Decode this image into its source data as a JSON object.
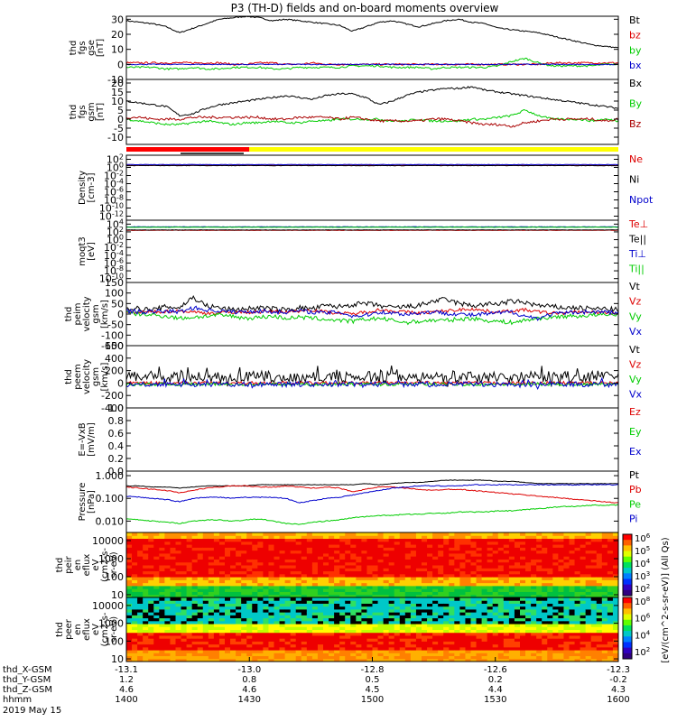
{
  "title": "P3 (TH-D) fields and on-board moments overview",
  "colors": {
    "black": "#000000",
    "red": "#dd0000",
    "green": "#00cc00",
    "blue": "#0000cc",
    "yellow": "#ffff00",
    "bar_red": "#ff0000"
  },
  "chart_data": [
    {
      "id": "fgs-gse",
      "type": "line",
      "ylabel": [
        "thd",
        "fgs",
        "gse",
        "[nT]"
      ],
      "ylim": [
        -10,
        32
      ],
      "yticks": [
        "30",
        "20",
        "10",
        "0",
        "-10"
      ],
      "ytick_values": [
        30,
        20,
        10,
        0,
        -10
      ],
      "series": [
        {
          "name": "Bt",
          "color": "#000000",
          "base": [
            29,
            28,
            27,
            25,
            21,
            24,
            27,
            30,
            31,
            32,
            31,
            29,
            30,
            29,
            28,
            27,
            26,
            22,
            25,
            28,
            29,
            27,
            25,
            27,
            29,
            30,
            28,
            27,
            24,
            23,
            22,
            21,
            19,
            17,
            15,
            13,
            12,
            11
          ],
          "noise": 0.4
        },
        {
          "name": "bz",
          "color": "#dd0000",
          "base": [
            1,
            1,
            1,
            1,
            1,
            1,
            1,
            1,
            0,
            0,
            1,
            1,
            0,
            0,
            1,
            0,
            0,
            0,
            0,
            0,
            0,
            0,
            0,
            0,
            0,
            0,
            0,
            0,
            0,
            0,
            0,
            0,
            1,
            1,
            1,
            1,
            1,
            1
          ],
          "noise": 0.6
        },
        {
          "name": "by",
          "color": "#00cc00",
          "base": [
            -2,
            -2,
            -2,
            -3,
            -3,
            -2,
            -3,
            -3,
            -2,
            -2,
            -2,
            -3,
            -3,
            -2,
            -2,
            -2,
            -2,
            -1,
            -1,
            -1,
            -2,
            -2,
            -2,
            -3,
            -2,
            -2,
            -2,
            -2,
            -1,
            2,
            4,
            1,
            -1,
            -1,
            -1,
            -1,
            0,
            0
          ],
          "noise": 0.6
        },
        {
          "name": "bx",
          "color": "#0000cc",
          "base": [
            0,
            0,
            0,
            0,
            0,
            0,
            0,
            0,
            0,
            0,
            0,
            0,
            0,
            0,
            0,
            0,
            0,
            0,
            0,
            0,
            0,
            0,
            0,
            0,
            0,
            0,
            0,
            0,
            0,
            0,
            0,
            0,
            0,
            0,
            0,
            0,
            0,
            0
          ],
          "noise": 0.3
        }
      ]
    },
    {
      "id": "fgs-gsm",
      "type": "line",
      "ylabel": [
        "thd",
        "fgs",
        "gsm",
        "[nT]"
      ],
      "ylim": [
        -14,
        22
      ],
      "yticks": [
        "20",
        "15",
        "10",
        "5",
        "0",
        "-5",
        "-10"
      ],
      "ytick_values": [
        20,
        15,
        10,
        5,
        0,
        -5,
        -10
      ],
      "series": [
        {
          "name": "Bx",
          "color": "#000000",
          "base": [
            10,
            9,
            8,
            7,
            2,
            3,
            6,
            8,
            9,
            10,
            11,
            12,
            13,
            12,
            11,
            13,
            14,
            14,
            12,
            8,
            10,
            13,
            15,
            16,
            17,
            17,
            18,
            16,
            15,
            14,
            13,
            12,
            11,
            10,
            9,
            8,
            7,
            6
          ],
          "noise": 0.5
        },
        {
          "name": "By",
          "color": "#00cc00",
          "base": [
            0,
            -1,
            -2,
            -3,
            -3,
            -2,
            -1,
            -2,
            -3,
            -2,
            -2,
            -1,
            -2,
            -2,
            -1,
            -1,
            0,
            0,
            0,
            0,
            -1,
            -1,
            0,
            -1,
            -1,
            -1,
            0,
            0,
            1,
            2,
            5,
            2,
            0,
            0,
            0,
            -1,
            0,
            -1
          ],
          "noise": 0.6
        },
        {
          "name": "Bz",
          "color": "#aa0000",
          "base": [
            1,
            1,
            0,
            0,
            0,
            1,
            1,
            1,
            1,
            1,
            1,
            0,
            0,
            1,
            1,
            1,
            0,
            1,
            0,
            -1,
            -1,
            -1,
            -1,
            0,
            0,
            -1,
            -2,
            -3,
            -3,
            -4,
            -2,
            -1,
            0,
            0,
            0,
            0,
            -1,
            0
          ],
          "noise": 0.7
        }
      ]
    },
    {
      "id": "density",
      "type": "line",
      "log": true,
      "ylabel": [
        "Density",
        "[cm-3]"
      ],
      "ylim": [
        -13,
        3
      ],
      "yticks": [
        "10^2",
        "10^0",
        "10^-2",
        "10^-4",
        "10^-6",
        "10^-8",
        "10^-10",
        "10^-12"
      ],
      "ytick_values": [
        2,
        0,
        -2,
        -4,
        -6,
        -8,
        -10,
        -12
      ],
      "series": [
        {
          "name": "Ne",
          "color": "#dd0000",
          "base": [
            0.5
          ],
          "noise": 0.05
        },
        {
          "name": "Ni",
          "color": "#000000",
          "base": [
            0.45
          ],
          "noise": 0.05
        },
        {
          "name": "Npot",
          "color": "#0000cc",
          "base": [
            0.7
          ],
          "noise": 0.05
        }
      ]
    },
    {
      "id": "temperature",
      "type": "line",
      "log": true,
      "ylabel": [
        "moqt3",
        "[eV]"
      ],
      "ylim": [
        -11,
        5
      ],
      "yticks": [
        "10^4",
        "10^2",
        "10^0",
        "10^-2",
        "10^-4",
        "10^-6",
        "10^-8",
        "10^-10"
      ],
      "ytick_values": [
        4,
        2,
        0,
        -2,
        -4,
        -6,
        -8,
        -10
      ],
      "series": [
        {
          "name": "Te⊥",
          "color": "#dd0000",
          "base": [
            2.4
          ],
          "noise": 0.05
        },
        {
          "name": "Te||",
          "color": "#000000",
          "base": [
            2.5
          ],
          "noise": 0.05
        },
        {
          "name": "Ti⊥",
          "color": "#0000cc",
          "base": [
            3.3
          ],
          "noise": 0.05
        },
        {
          "name": "Ti||",
          "color": "#00cc00",
          "base": [
            3.2
          ],
          "noise": 0.05
        }
      ]
    },
    {
      "id": "peim-velocity",
      "type": "line",
      "ylabel": [
        "thd",
        "peim",
        "velocity",
        "gsm",
        "[km/s]"
      ],
      "ylim": [
        -150,
        150
      ],
      "yticks": [
        "150",
        "100",
        "50",
        "0",
        "-50",
        "-100",
        "-150"
      ],
      "ytick_values": [
        150,
        100,
        50,
        0,
        -50,
        -100,
        -150
      ],
      "series": [
        {
          "name": "Vt",
          "color": "#000000",
          "base": [
            30,
            25,
            20,
            35,
            30,
            80,
            40,
            30,
            20,
            25,
            30,
            25,
            20,
            30,
            25,
            40,
            35,
            45,
            50,
            40,
            30,
            35,
            40,
            60,
            70,
            50,
            40,
            45,
            50,
            60,
            55,
            40,
            35,
            30,
            30,
            25,
            25,
            20
          ],
          "noise": 12
        },
        {
          "name": "Vz",
          "color": "#dd0000",
          "base": [
            5,
            8,
            10,
            12,
            15,
            10,
            5,
            5,
            10,
            8,
            10,
            12,
            10,
            15,
            20,
            10,
            5,
            0,
            10,
            20,
            15,
            10,
            5,
            10,
            15,
            20,
            25,
            15,
            10,
            15,
            20,
            10,
            5,
            5,
            10,
            10,
            5,
            5
          ],
          "noise": 8
        },
        {
          "name": "Vy",
          "color": "#00cc00",
          "base": [
            5,
            0,
            -5,
            -10,
            -20,
            -15,
            -10,
            -5,
            -10,
            -20,
            -15,
            -10,
            -20,
            -15,
            -20,
            -25,
            -30,
            -35,
            -25,
            -20,
            -30,
            -40,
            -35,
            -30,
            -30,
            -25,
            -20,
            -30,
            -35,
            -40,
            -30,
            -20,
            -15,
            -10,
            -10,
            -5,
            -5,
            0
          ],
          "noise": 10
        },
        {
          "name": "Vx",
          "color": "#0000cc",
          "base": [
            15,
            10,
            10,
            15,
            10,
            30,
            20,
            15,
            10,
            10,
            15,
            10,
            10,
            15,
            10,
            5,
            10,
            -10,
            -5,
            10,
            5,
            0,
            5,
            10,
            5,
            0,
            -5,
            0,
            5,
            10,
            -10,
            -20,
            0,
            5,
            10,
            10,
            10,
            5
          ],
          "noise": 10
        }
      ]
    },
    {
      "id": "peem-velocity",
      "type": "line",
      "ylabel": [
        "thd",
        "peem",
        "velocity",
        "gsm",
        "[km/s]"
      ],
      "ylim": [
        -400,
        600
      ],
      "yticks": [
        "600",
        "400",
        "200",
        "0",
        "-200",
        "-400"
      ],
      "ytick_values": [
        600,
        400,
        200,
        0,
        -200,
        -400
      ],
      "series": [
        {
          "name": "Vt",
          "color": "#000000",
          "base": [
            100
          ],
          "noise": 90,
          "spiky": true
        },
        {
          "name": "Vz",
          "color": "#dd0000",
          "base": [
            0
          ],
          "noise": 25
        },
        {
          "name": "Vy",
          "color": "#00cc00",
          "base": [
            -20
          ],
          "noise": 25
        },
        {
          "name": "Vx",
          "color": "#0000cc",
          "base": [
            -20
          ],
          "noise": 40,
          "spiky": true
        }
      ]
    },
    {
      "id": "e-field",
      "type": "line",
      "ylabel": [
        "E=-VxB",
        "[mV/m]"
      ],
      "ylim": [
        0,
        1
      ],
      "yticks": [
        "1.0",
        "0.8",
        "0.6",
        "0.4",
        "0.2",
        "0.0"
      ],
      "ytick_values": [
        1,
        0.8,
        0.6,
        0.4,
        0.2,
        0
      ],
      "series": [
        {
          "name": "Ez",
          "color": "#dd0000",
          "base": [],
          "noise": 0
        },
        {
          "name": "Ey",
          "color": "#00cc00",
          "base": [],
          "noise": 0
        },
        {
          "name": "Ex",
          "color": "#0000cc",
          "base": [],
          "noise": 0
        }
      ]
    },
    {
      "id": "pressure",
      "type": "line",
      "log": true,
      "ylabel": [
        "Pressure",
        "[nPa]"
      ],
      "ylim": [
        -2.5,
        0.2
      ],
      "yticks": [
        "1.000",
        "0.100",
        "0.010"
      ],
      "ytick_values": [
        0,
        -1,
        -2
      ],
      "series": [
        {
          "name": "Pt",
          "color": "#000000",
          "base": [
            -0.45,
            -0.45,
            -0.5,
            -0.5,
            -0.55,
            -0.5,
            -0.45,
            -0.45,
            -0.45,
            -0.45,
            -0.4,
            -0.4,
            -0.4,
            -0.4,
            -0.4,
            -0.4,
            -0.4,
            -0.4,
            -0.35,
            -0.4,
            -0.35,
            -0.3,
            -0.3,
            -0.25,
            -0.2,
            -0.2,
            -0.2,
            -0.2,
            -0.25,
            -0.25,
            -0.3,
            -0.35,
            -0.35,
            -0.35,
            -0.35,
            -0.35,
            -0.35,
            -0.35
          ],
          "noise": 0.01
        },
        {
          "name": "Pb",
          "color": "#dd0000",
          "base": [
            -0.5,
            -0.55,
            -0.6,
            -0.65,
            -0.75,
            -0.65,
            -0.55,
            -0.5,
            -0.45,
            -0.45,
            -0.5,
            -0.5,
            -0.45,
            -0.5,
            -0.55,
            -0.5,
            -0.55,
            -0.7,
            -0.6,
            -0.5,
            -0.5,
            -0.55,
            -0.6,
            -0.65,
            -0.6,
            -0.6,
            -0.65,
            -0.7,
            -0.75,
            -0.8,
            -0.85,
            -0.9,
            -0.95,
            -1.0,
            -1.05,
            -1.1,
            -1.15,
            -1.2
          ],
          "noise": 0.02
        },
        {
          "name": "Pe",
          "color": "#00cc00",
          "base": [
            -1.9,
            -1.95,
            -2.0,
            -2.05,
            -2.1,
            -2.0,
            -1.95,
            -1.95,
            -2.0,
            -1.95,
            -1.9,
            -2.0,
            -2.1,
            -2.15,
            -2.05,
            -2.0,
            -1.95,
            -1.85,
            -1.8,
            -1.75,
            -1.75,
            -1.7,
            -1.7,
            -1.65,
            -1.65,
            -1.6,
            -1.6,
            -1.6,
            -1.55,
            -1.55,
            -1.5,
            -1.45,
            -1.4,
            -1.35,
            -1.35,
            -1.3,
            -1.3,
            -1.3
          ],
          "noise": 0.02
        },
        {
          "name": "Pi",
          "color": "#0000cc",
          "base": [
            -0.9,
            -0.95,
            -1.0,
            -1.05,
            -1.15,
            -1.0,
            -0.95,
            -0.95,
            -1.0,
            -0.95,
            -0.95,
            -0.95,
            -1.0,
            -1.2,
            -1.1,
            -1.0,
            -0.95,
            -0.85,
            -0.75,
            -0.65,
            -0.55,
            -0.5,
            -0.45,
            -0.45,
            -0.45,
            -0.45,
            -0.4,
            -0.4,
            -0.4,
            -0.4,
            -0.4,
            -0.4,
            -0.4,
            -0.4,
            -0.4,
            -0.4,
            -0.4,
            -0.4
          ],
          "noise": 0.02
        }
      ]
    },
    {
      "id": "peir-spectrogram",
      "type": "heatmap",
      "ylabel": [
        "thd",
        "peir",
        "en",
        "eflux",
        "eV",
        "(cm2-s-",
        "sr-eV)"
      ],
      "ylim": [
        0.85,
        4.45
      ],
      "yticks": [
        "10000",
        "1000",
        "100",
        "10"
      ],
      "ytick_values": [
        4,
        3,
        2,
        1
      ],
      "colorbar": {
        "label": "[eV/(cm^2-s-sr-eV)] (All Qs)",
        "ticks": [
          "10^6",
          "10^5",
          "10^4",
          "10^3",
          "10^2"
        ]
      }
    },
    {
      "id": "peer-spectrogram",
      "type": "heatmap",
      "ylabel": [
        "thd",
        "peer",
        "en",
        "eflux",
        "eV",
        "(cm2-s-",
        "sr-eV)"
      ],
      "ylim": [
        0.85,
        4.45
      ],
      "yticks": [
        "10000",
        "1000",
        "100",
        "10"
      ],
      "ytick_values": [
        4,
        3,
        2,
        1
      ],
      "colorbar": {
        "label": "[eV/(cm^2-s-sr-eV)] (All Qs)",
        "ticks": [
          "10^8",
          "10^6",
          "10^4",
          "10^2"
        ]
      }
    }
  ],
  "legends": [
    [
      "Bt",
      "bz",
      "by",
      "bx"
    ],
    [
      "Bx",
      "By",
      "Bz"
    ],
    [
      "Ne",
      "Ni",
      "Npot"
    ],
    [
      "Te⊥",
      "Te||",
      "Ti⊥",
      "Ti||"
    ],
    [
      "Vt",
      "Vz",
      "Vy",
      "Vx"
    ],
    [
      "Vt",
      "Vz",
      "Vy",
      "Vx"
    ],
    [
      "Ez",
      "Ey",
      "Ex"
    ],
    [
      "Pt",
      "Pb",
      "Pe",
      "Pi"
    ]
  ],
  "mode_bar": {
    "red_fraction": 0.25
  },
  "xaxis": {
    "row_labels": [
      "thd_X-GSM",
      "thd_Y-GSM",
      "thd_Z-GSM",
      "hhmm",
      "2019 May 15"
    ],
    "ticks": [
      {
        "x": "-13.1",
        "y": "1.2",
        "z": "4.6",
        "hhmm": "1400"
      },
      {
        "x": "-13.0",
        "y": "0.8",
        "z": "4.6",
        "hhmm": "1430"
      },
      {
        "x": "-12.8",
        "y": "0.5",
        "z": "4.5",
        "hhmm": "1500"
      },
      {
        "x": "-12.6",
        "y": "0.2",
        "z": "4.4",
        "hhmm": "1530"
      },
      {
        "x": "-12.3",
        "y": "-0.2",
        "z": "4.3",
        "hhmm": "1600"
      }
    ]
  }
}
